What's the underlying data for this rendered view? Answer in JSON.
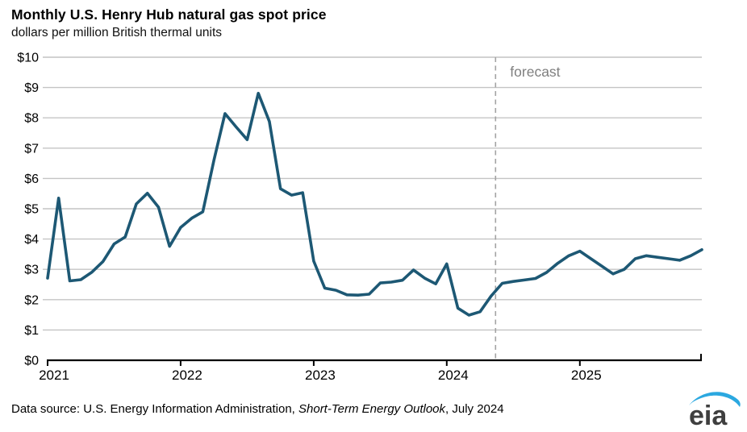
{
  "header": {
    "title": "Monthly U.S. Henry Hub natural gas spot price",
    "subtitle": "dollars per million British thermal units"
  },
  "footer": {
    "source_prefix": "Data source: U.S. Energy Information Administration, ",
    "source_publication": "Short-Term Energy Outlook",
    "source_suffix": ", July 2024"
  },
  "logo": {
    "text": "eia"
  },
  "colors": {
    "line": "#1d5874",
    "grid": "#c4c4c4",
    "axis": "#000000",
    "forecast_divider": "#a3a3a3",
    "forecast_label": "#7f7f7f",
    "logo_swoosh": "#2ba8e0",
    "logo_text": "#3f3f3f"
  },
  "chart_data": {
    "type": "line",
    "title": "Monthly U.S. Henry Hub natural gas spot price",
    "ylabel": "dollars per million British thermal units",
    "ylim": [
      0,
      10
    ],
    "y_tick_labels": [
      "$0",
      "$1",
      "$2",
      "$3",
      "$4",
      "$5",
      "$6",
      "$7",
      "$8",
      "$9",
      "$10"
    ],
    "x_tick_labels": [
      "2021",
      "2022",
      "2023",
      "2024",
      "2025"
    ],
    "grid": "horizontal",
    "legend": "none",
    "annotation": "forecast",
    "forecast_start": "Jun 2024",
    "months": [
      "Jan 2021",
      "Feb 2021",
      "Mar 2021",
      "Apr 2021",
      "May 2021",
      "Jun 2021",
      "Jul 2021",
      "Aug 2021",
      "Sep 2021",
      "Oct 2021",
      "Nov 2021",
      "Dec 2021",
      "Jan 2022",
      "Feb 2022",
      "Mar 2022",
      "Apr 2022",
      "May 2022",
      "Jun 2022",
      "Jul 2022",
      "Aug 2022",
      "Sep 2022",
      "Oct 2022",
      "Nov 2022",
      "Dec 2022",
      "Jan 2023",
      "Feb 2023",
      "Mar 2023",
      "Apr 2023",
      "May 2023",
      "Jun 2023",
      "Jul 2023",
      "Aug 2023",
      "Sep 2023",
      "Oct 2023",
      "Nov 2023",
      "Dec 2023",
      "Jan 2024",
      "Feb 2024",
      "Mar 2024",
      "Apr 2024",
      "May 2024",
      "Jun 2024",
      "Jul 2024",
      "Aug 2024",
      "Sep 2024",
      "Oct 2024",
      "Nov 2024",
      "Dec 2024",
      "Jan 2025",
      "Feb 2025",
      "Mar 2025",
      "Apr 2025",
      "May 2025",
      "Jun 2025",
      "Jul 2025",
      "Aug 2025",
      "Sep 2025",
      "Oct 2025",
      "Nov 2025",
      "Dec 2025"
    ],
    "values": [
      2.71,
      5.35,
      2.62,
      2.66,
      2.91,
      3.26,
      3.84,
      4.07,
      5.16,
      5.51,
      5.05,
      3.76,
      4.38,
      4.69,
      4.9,
      6.6,
      8.14,
      7.7,
      7.28,
      8.81,
      7.88,
      5.66,
      5.45,
      5.53,
      3.27,
      2.38,
      2.31,
      2.16,
      2.15,
      2.18,
      2.55,
      2.58,
      2.64,
      2.98,
      2.71,
      2.52,
      3.18,
      1.72,
      1.49,
      1.6,
      2.12,
      2.54,
      2.6,
      2.65,
      2.7,
      2.9,
      3.2,
      3.45,
      3.6,
      3.35,
      3.1,
      2.85,
      3.0,
      3.35,
      3.45,
      3.4,
      3.35,
      3.3,
      3.45,
      3.65
    ]
  }
}
